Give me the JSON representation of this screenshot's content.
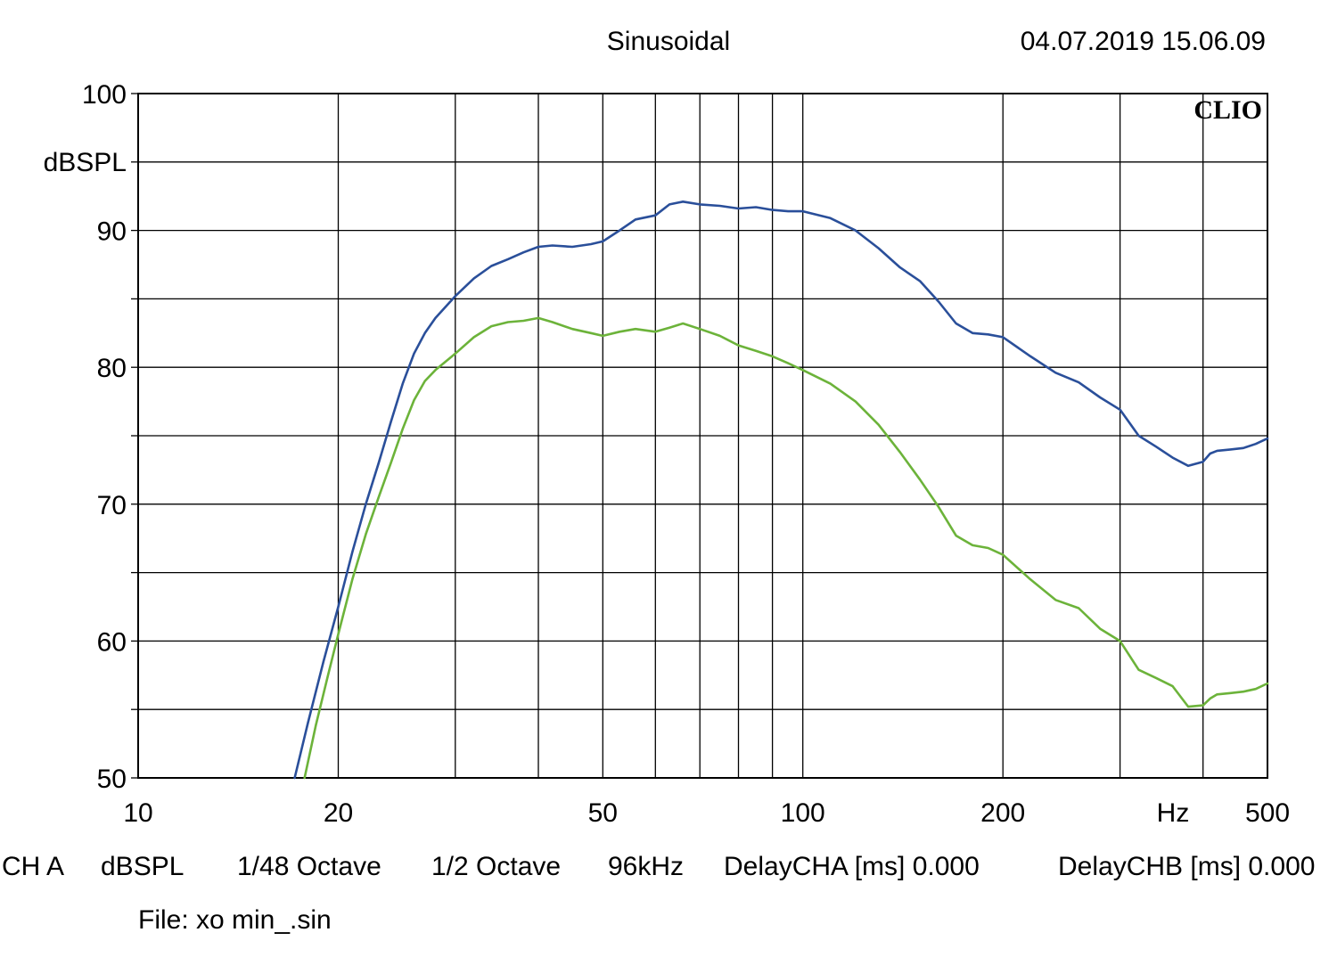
{
  "header": {
    "title": "Sinusoidal",
    "datetime": "04.07.2019 15.06.09",
    "brand": "CLIO"
  },
  "footer": {
    "settings": [
      "CH A",
      "dBSPL",
      "1/48 Octave",
      "1/2 Octave",
      "96kHz",
      "DelayCHA [ms] 0.000",
      "DelayCHB [ms] 0.000"
    ],
    "file": "File: xo min_.sin"
  },
  "colors": {
    "series_1": "#2a4f9a",
    "series_2": "#6cb33a",
    "grid": "#000000"
  },
  "chart_data": {
    "type": "line",
    "title": "Sinusoidal",
    "xlabel": "Hz",
    "ylabel": "dBSPL",
    "x_scale": "log",
    "xlim": [
      10,
      500
    ],
    "ylim": [
      50,
      100
    ],
    "x_tick_labels": [
      "10",
      "20",
      "50",
      "100",
      "200",
      "500"
    ],
    "y_tick_labels": [
      "50",
      "60",
      "70",
      "80",
      "90",
      "100"
    ],
    "grid": true,
    "series": [
      {
        "x": [
          17.2,
          18.0,
          19.0,
          20.0,
          21.0,
          22.0,
          23.0,
          24.0,
          25.0,
          26.0,
          27.0,
          28.0,
          30.0,
          32.0,
          34.0,
          36.0,
          38.0,
          40.0,
          42.0,
          45.0,
          48.0,
          50.0,
          53.0,
          56.0,
          60.0,
          63.0,
          66.0,
          70.0,
          75.0,
          80.0,
          85.0,
          90.0,
          95.0,
          100.0,
          110.0,
          120.0,
          130.0,
          140.0,
          150.0,
          160.0,
          170.0,
          180.0,
          190.0,
          200.0,
          220.0,
          240.0,
          260.0,
          280.0,
          300.0,
          320.0,
          340.0,
          360.0,
          380.0,
          400.0,
          410.0,
          420.0,
          440.0,
          460.0,
          480.0,
          500.0
        ],
        "y": [
          50.0,
          54.0,
          58.5,
          62.5,
          66.5,
          70.0,
          73.0,
          76.0,
          78.8,
          81.0,
          82.5,
          83.6,
          85.2,
          86.5,
          87.4,
          87.9,
          88.4,
          88.8,
          88.9,
          88.8,
          89.0,
          89.2,
          90.0,
          90.8,
          91.1,
          91.9,
          92.1,
          91.9,
          91.8,
          91.6,
          91.7,
          91.5,
          91.4,
          91.4,
          90.9,
          90.0,
          88.7,
          87.3,
          86.3,
          84.8,
          83.2,
          82.5,
          82.4,
          82.2,
          80.8,
          79.6,
          78.9,
          77.8,
          76.9,
          75.0,
          74.2,
          73.4,
          72.8,
          73.1,
          73.7,
          73.9,
          74.0,
          74.1,
          74.4,
          74.8
        ]
      },
      {
        "x": [
          17.8,
          18.5,
          19.3,
          20.0,
          21.0,
          22.0,
          23.0,
          24.0,
          25.0,
          26.0,
          27.0,
          28.0,
          30.0,
          32.0,
          34.0,
          36.0,
          38.0,
          40.0,
          42.0,
          45.0,
          48.0,
          50.0,
          53.0,
          56.0,
          60.0,
          63.0,
          66.0,
          70.0,
          75.0,
          80.0,
          85.0,
          90.0,
          95.0,
          100.0,
          110.0,
          120.0,
          130.0,
          140.0,
          150.0,
          160.0,
          170.0,
          180.0,
          190.0,
          200.0,
          220.0,
          240.0,
          260.0,
          280.0,
          300.0,
          320.0,
          340.0,
          360.0,
          380.0,
          400.0,
          410.0,
          420.0,
          440.0,
          460.0,
          480.0,
          500.0
        ],
        "y": [
          50.0,
          53.8,
          57.5,
          60.5,
          64.5,
          67.8,
          70.5,
          73.0,
          75.5,
          77.6,
          79.0,
          79.8,
          81.0,
          82.2,
          83.0,
          83.3,
          83.4,
          83.6,
          83.3,
          82.8,
          82.5,
          82.3,
          82.6,
          82.8,
          82.6,
          82.9,
          83.2,
          82.8,
          82.3,
          81.6,
          81.2,
          80.8,
          80.3,
          79.8,
          78.8,
          77.5,
          75.8,
          73.8,
          71.8,
          69.8,
          67.7,
          67.0,
          66.8,
          66.3,
          64.5,
          63.0,
          62.4,
          60.9,
          60.0,
          57.9,
          57.3,
          56.7,
          55.2,
          55.3,
          55.8,
          56.1,
          56.2,
          56.3,
          56.5,
          56.9
        ]
      }
    ]
  }
}
